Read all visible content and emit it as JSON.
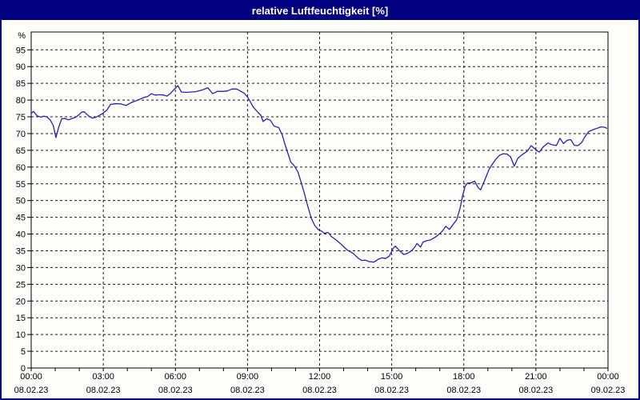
{
  "window_title": "relative Luftfeuchtigkeit [%]",
  "colors": {
    "title_bar": "#000080",
    "border": "#000080",
    "line": "#2222bb",
    "grid": "#1a1a1a",
    "axis": "#000000",
    "text": "#000000",
    "background": "#fdfdfa"
  },
  "chart_data": {
    "type": "line",
    "title": "relative Luftfeuchtigkeit [%]",
    "ylabel": "%",
    "xlabel": "",
    "grid": "dashed",
    "legend_position": "none",
    "y_axis": {
      "min": 0,
      "max": 100,
      "tick_step": 5,
      "unit_label": "%",
      "tick_labels": [
        0,
        5,
        10,
        15,
        20,
        25,
        30,
        35,
        40,
        45,
        50,
        55,
        60,
        65,
        70,
        75,
        80,
        85,
        90,
        95
      ]
    },
    "x_axis": {
      "min_hours": 0,
      "max_hours": 24,
      "minor_tick_hours": 1,
      "major_tick_hours": 3
    },
    "x_ticks": [
      {
        "t": 0,
        "time": "00:00",
        "date": "08.02.23"
      },
      {
        "t": 3,
        "time": "03:00",
        "date": "08.02.23"
      },
      {
        "t": 6,
        "time": "06:00",
        "date": "08.02.23"
      },
      {
        "t": 9,
        "time": "09:00",
        "date": "08.02.23"
      },
      {
        "t": 12,
        "time": "12:00",
        "date": "08.02.23"
      },
      {
        "t": 15,
        "time": "15:00",
        "date": "08.02.23"
      },
      {
        "t": 18,
        "time": "18:00",
        "date": "08.02.23"
      },
      {
        "t": 21,
        "time": "21:00",
        "date": "08.02.23"
      },
      {
        "t": 24,
        "time": "00:00",
        "date": "09.02.23"
      }
    ],
    "series": [
      {
        "name": "relative Luftfeuchtigkeit",
        "color": "#2222bb",
        "points_t_hours_value_pct": [
          [
            0,
            76.0
          ],
          [
            0.1,
            76.6
          ],
          [
            0.25,
            75.3
          ],
          [
            0.4,
            74.9
          ],
          [
            0.52,
            75.2
          ],
          [
            0.65,
            75.0
          ],
          [
            0.8,
            74.0
          ],
          [
            0.92,
            72.4
          ],
          [
            1.03,
            68.8
          ],
          [
            1.15,
            72.0
          ],
          [
            1.27,
            74.4
          ],
          [
            1.4,
            74.5
          ],
          [
            1.55,
            74.1
          ],
          [
            1.7,
            74.5
          ],
          [
            1.82,
            74.8
          ],
          [
            1.95,
            75.4
          ],
          [
            2.1,
            76.4
          ],
          [
            2.2,
            76.5
          ],
          [
            2.4,
            75.2
          ],
          [
            2.55,
            74.6
          ],
          [
            2.7,
            74.9
          ],
          [
            2.95,
            75.9
          ],
          [
            3.15,
            77.0
          ],
          [
            3.3,
            78.7
          ],
          [
            3.5,
            78.9
          ],
          [
            3.7,
            78.9
          ],
          [
            3.95,
            78.4
          ],
          [
            4.15,
            79.2
          ],
          [
            4.4,
            79.9
          ],
          [
            4.7,
            80.8
          ],
          [
            4.85,
            81.1
          ],
          [
            5.0,
            81.9
          ],
          [
            5.15,
            81.5
          ],
          [
            5.35,
            81.6
          ],
          [
            5.5,
            81.5
          ],
          [
            5.65,
            81.2
          ],
          [
            5.8,
            82.0
          ],
          [
            5.95,
            83.2
          ],
          [
            6.1,
            84.3
          ],
          [
            6.25,
            82.4
          ],
          [
            6.45,
            82.3
          ],
          [
            6.65,
            82.4
          ],
          [
            6.85,
            82.5
          ],
          [
            7.0,
            82.8
          ],
          [
            7.15,
            83.1
          ],
          [
            7.35,
            83.7
          ],
          [
            7.55,
            81.9
          ],
          [
            7.75,
            82.6
          ],
          [
            7.95,
            82.6
          ],
          [
            8.15,
            82.7
          ],
          [
            8.35,
            83.3
          ],
          [
            8.55,
            83.3
          ],
          [
            8.7,
            82.7
          ],
          [
            8.85,
            82.1
          ],
          [
            9.0,
            80.9
          ],
          [
            9.25,
            77.8
          ],
          [
            9.45,
            76.2
          ],
          [
            9.55,
            75.5
          ],
          [
            9.65,
            73.6
          ],
          [
            9.8,
            74.4
          ],
          [
            9.95,
            74.0
          ],
          [
            10.1,
            72.3
          ],
          [
            10.2,
            72.0
          ],
          [
            10.3,
            71.8
          ],
          [
            10.45,
            69.5
          ],
          [
            10.55,
            67.0
          ],
          [
            10.65,
            64.8
          ],
          [
            10.8,
            61.5
          ],
          [
            10.95,
            60.3
          ],
          [
            11.1,
            58.5
          ],
          [
            11.25,
            55.0
          ],
          [
            11.35,
            52.5
          ],
          [
            11.5,
            48.5
          ],
          [
            11.65,
            44.8
          ],
          [
            11.8,
            42.5
          ],
          [
            11.95,
            41.3
          ],
          [
            12.1,
            40.8
          ],
          [
            12.2,
            40.2
          ],
          [
            12.35,
            40.5
          ],
          [
            12.5,
            39.2
          ],
          [
            12.7,
            38.2
          ],
          [
            12.95,
            36.6
          ],
          [
            13.15,
            35.2
          ],
          [
            13.4,
            34.2
          ],
          [
            13.6,
            32.8
          ],
          [
            13.75,
            32.1
          ],
          [
            13.9,
            32.2
          ],
          [
            14.05,
            31.8
          ],
          [
            14.25,
            31.6
          ],
          [
            14.45,
            32.5
          ],
          [
            14.6,
            32.9
          ],
          [
            14.75,
            32.7
          ],
          [
            14.9,
            33.4
          ],
          [
            15.05,
            35.6
          ],
          [
            15.15,
            36.4
          ],
          [
            15.3,
            35.2
          ],
          [
            15.5,
            33.9
          ],
          [
            15.65,
            34.2
          ],
          [
            15.8,
            34.9
          ],
          [
            15.95,
            36.0
          ],
          [
            16.05,
            37.2
          ],
          [
            16.2,
            36.1
          ],
          [
            16.3,
            37.6
          ],
          [
            16.45,
            38.0
          ],
          [
            16.6,
            38.2
          ],
          [
            16.8,
            39.0
          ],
          [
            16.95,
            39.8
          ],
          [
            17.1,
            40.8
          ],
          [
            17.25,
            42.3
          ],
          [
            17.4,
            41.4
          ],
          [
            17.55,
            42.8
          ],
          [
            17.7,
            44.2
          ],
          [
            17.85,
            47.8
          ],
          [
            17.95,
            51.4
          ],
          [
            18.05,
            54.2
          ],
          [
            18.15,
            55.2
          ],
          [
            18.3,
            55.3
          ],
          [
            18.45,
            55.8
          ],
          [
            18.6,
            53.8
          ],
          [
            18.7,
            53.2
          ],
          [
            18.8,
            54.9
          ],
          [
            18.95,
            57.5
          ],
          [
            19.05,
            59.3
          ],
          [
            19.2,
            61.0
          ],
          [
            19.35,
            62.5
          ],
          [
            19.5,
            63.6
          ],
          [
            19.65,
            64.0
          ],
          [
            19.8,
            63.9
          ],
          [
            19.95,
            63.0
          ],
          [
            20.1,
            60.3
          ],
          [
            20.25,
            62.6
          ],
          [
            20.4,
            63.6
          ],
          [
            20.55,
            64.3
          ],
          [
            20.65,
            64.8
          ],
          [
            20.8,
            66.4
          ],
          [
            20.95,
            65.5
          ],
          [
            21.05,
            64.8
          ],
          [
            21.15,
            64.5
          ],
          [
            21.3,
            66.0
          ],
          [
            21.5,
            67.2
          ],
          [
            21.65,
            66.7
          ],
          [
            21.85,
            66.4
          ],
          [
            22.0,
            68.6
          ],
          [
            22.15,
            67.0
          ],
          [
            22.3,
            68.0
          ],
          [
            22.45,
            68.2
          ],
          [
            22.6,
            66.5
          ],
          [
            22.75,
            66.4
          ],
          [
            22.9,
            67.3
          ],
          [
            23.05,
            69.2
          ],
          [
            23.2,
            70.6
          ],
          [
            23.4,
            71.2
          ],
          [
            23.55,
            71.6
          ],
          [
            23.7,
            72.0
          ],
          [
            23.85,
            71.9
          ],
          [
            23.95,
            71.6
          ]
        ]
      }
    ]
  }
}
